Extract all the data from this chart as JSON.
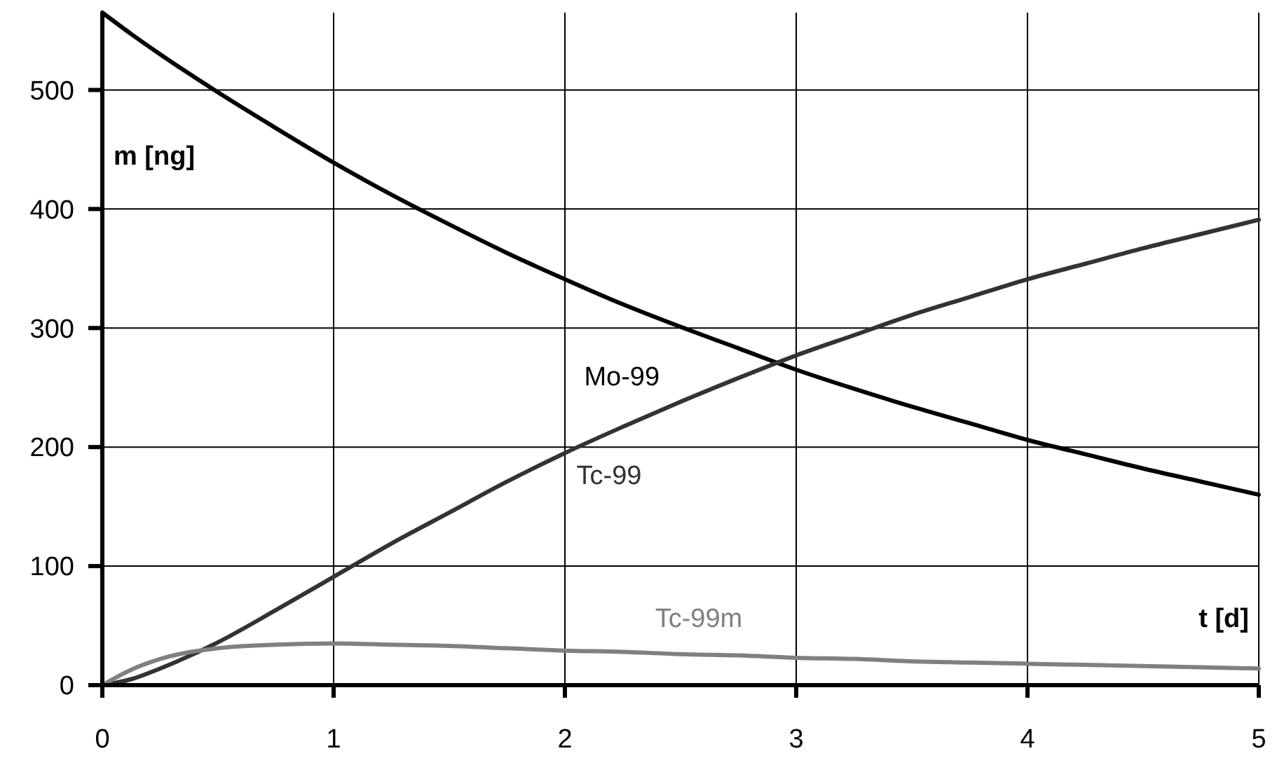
{
  "chart_data": {
    "type": "line",
    "xlabel": "t [d]",
    "ylabel": "m [ng]",
    "x": [
      0,
      0.125,
      0.25,
      0.5,
      0.75,
      1,
      1.25,
      1.5,
      1.75,
      2,
      2.25,
      2.5,
      2.75,
      3,
      3.25,
      3.5,
      3.75,
      4,
      4.25,
      4.5,
      4.75,
      5
    ],
    "xlim": [
      0,
      5
    ],
    "xticks": [
      0,
      1,
      2,
      3,
      4,
      5
    ],
    "ylim": [
      0,
      565
    ],
    "yticks": [
      0,
      100,
      200,
      300,
      400,
      500
    ],
    "grid": true,
    "line_style": "solid",
    "series": [
      {
        "name": "Mo-99",
        "color": "#000000",
        "values": [
          565,
          547,
          530,
          498,
          468,
          439,
          412,
          387,
          363,
          341,
          320,
          301,
          283,
          265,
          249,
          234,
          220,
          206,
          194,
          182,
          171,
          160
        ]
      },
      {
        "name": "Tc-99",
        "color": "#333333",
        "values": [
          0,
          5,
          14,
          36,
          63,
          91,
          119,
          145,
          171,
          195,
          217,
          238,
          258,
          277,
          294,
          311,
          326,
          341,
          354,
          367,
          379,
          391
        ]
      },
      {
        "name": "Tc-99m",
        "color": "#808080",
        "values": [
          0,
          13,
          22,
          31,
          34,
          35,
          34,
          33,
          31,
          29,
          28,
          26,
          25,
          23,
          22,
          20,
          19,
          18,
          17,
          16,
          15,
          14
        ]
      }
    ]
  }
}
